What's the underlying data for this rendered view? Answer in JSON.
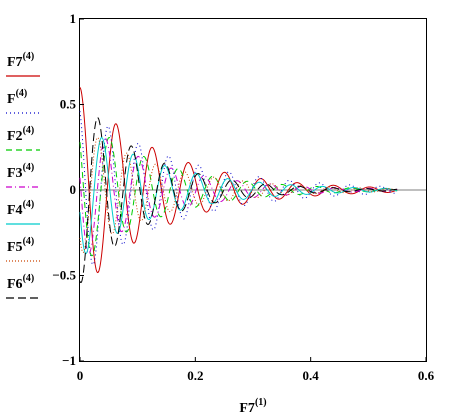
{
  "chart_data": {
    "type": "line",
    "xlabel": {
      "base": "F7",
      "sup": "(1)"
    },
    "xlim": [
      0,
      0.6
    ],
    "ylim": [
      -1,
      1
    ],
    "xticks": [
      0,
      0.2,
      0.4,
      0.6
    ],
    "xtick_labels": [
      "0",
      "0.2",
      "0.4",
      "0.6"
    ],
    "yticks": [
      -1,
      -0.5,
      0,
      0.5,
      1
    ],
    "ytick_labels": [
      "−1",
      "−0.5",
      "0",
      "0.5",
      "1"
    ],
    "grid": false,
    "legend_position": "left",
    "series": [
      {
        "name": "F7",
        "sup": "(4)",
        "color": "#cc0000",
        "dash": "",
        "omega": 100.0,
        "phase": 0.0,
        "amp": 0.6,
        "decay": 7.0,
        "x_end": 0.55
      },
      {
        "name": "F",
        "sup": "(4)",
        "color": "#0000cc",
        "dash": "1,3",
        "omega": 120.0,
        "phase": 0.4,
        "amp": 0.5,
        "decay": 6.0,
        "x_end": 0.55
      },
      {
        "name": "F2",
        "sup": "(4)",
        "color": "#00cc00",
        "dash": "6,4",
        "omega": 105.0,
        "phase": 0.9,
        "amp": 0.45,
        "decay": 7.5,
        "x_end": 0.55
      },
      {
        "name": "F3",
        "sup": "(4)",
        "color": "#cc00cc",
        "dash": "6,3,1,3",
        "omega": 110.0,
        "phase": 1.4,
        "amp": 0.42,
        "decay": 7.5,
        "x_end": 0.55
      },
      {
        "name": "F4",
        "sup": "(4)",
        "color": "#00cccc",
        "dash": "",
        "omega": 115.0,
        "phase": 1.9,
        "amp": 0.4,
        "decay": 7.0,
        "x_end": 0.55
      },
      {
        "name": "F5",
        "sup": "(4)",
        "color": "#cc4400",
        "dash": "1,2",
        "omega": 125.0,
        "phase": 2.4,
        "amp": 0.38,
        "decay": 7.0,
        "x_end": 0.55
      },
      {
        "name": "F6",
        "sup": "(4)",
        "color": "#000000",
        "dash": "8,4",
        "omega": 108.0,
        "phase": 2.9,
        "amp": 0.55,
        "decay": 8.5,
        "x_end": 0.55
      }
    ]
  }
}
